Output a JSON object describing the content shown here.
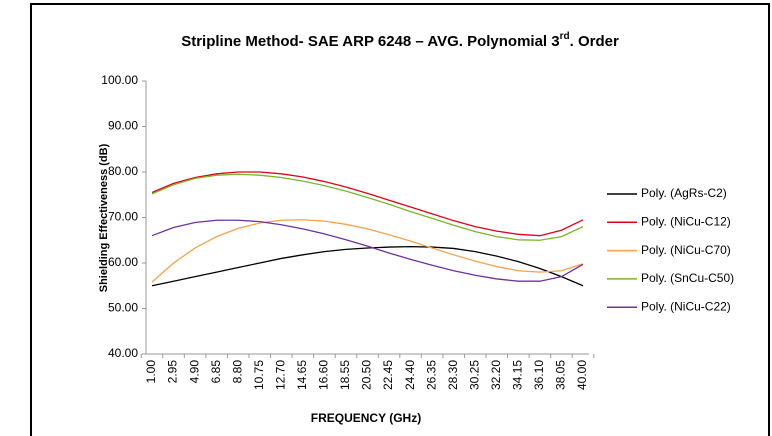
{
  "chart_data": {
    "type": "line",
    "title": "Stripline Method- SAE ARP 6248 – AVG. Polynomial 3",
    "title_sup": "rd",
    "title_end": ". Order",
    "x_label": "FREQUENCY (GHz)",
    "y_label": "Shielding Effectiveness (dB)",
    "categories": [
      "1.00",
      "2.95",
      "4.90",
      "6.85",
      "8.80",
      "10.75",
      "12.70",
      "14.65",
      "16.60",
      "18.55",
      "20.50",
      "22.45",
      "24.40",
      "26.35",
      "28.30",
      "30.25",
      "32.20",
      "34.15",
      "36.10",
      "38.05",
      "40.00"
    ],
    "ylim": [
      40,
      100
    ],
    "yticks": [
      {
        "value": 40,
        "label": "40.00"
      },
      {
        "value": 50,
        "label": "50.00"
      },
      {
        "value": 60,
        "label": "60.00"
      },
      {
        "value": 70,
        "label": "70.00"
      },
      {
        "value": 80,
        "label": "80.00"
      },
      {
        "value": 90,
        "label": "90.00"
      },
      {
        "value": 100,
        "label": "100.00"
      }
    ],
    "legend": "right",
    "series": [
      {
        "name": "Poly. (AgRs-C2)",
        "color": "#000000",
        "values": [
          55,
          56,
          57,
          58,
          59,
          60,
          61,
          61.8,
          62.5,
          63,
          63.3,
          63.5,
          63.6,
          63.5,
          63.2,
          62.5,
          61.5,
          60.3,
          58.8,
          57,
          55
        ]
      },
      {
        "name": "Poly. (NiCu-C12)",
        "color": "#e3001b",
        "values": [
          75.5,
          77.5,
          78.8,
          79.6,
          80,
          80,
          79.6,
          78.9,
          77.9,
          76.7,
          75.3,
          73.8,
          72.3,
          70.8,
          69.3,
          68,
          67,
          66.3,
          66,
          67.2,
          69.5
        ]
      },
      {
        "name": "Poly. (NiCu-C70)",
        "color": "#f7a14a",
        "values": [
          55.8,
          60,
          63.3,
          65.8,
          67.6,
          68.8,
          69.4,
          69.5,
          69.2,
          68.5,
          67.5,
          66.2,
          64.8,
          63.3,
          61.8,
          60.4,
          59.2,
          58.3,
          58,
          58.3,
          59.8
        ]
      },
      {
        "name": "Poly. (SnCu-C50)",
        "color": "#76b82a",
        "values": [
          75.2,
          77.2,
          78.6,
          79.3,
          79.5,
          79.3,
          78.8,
          78,
          77,
          75.8,
          74.4,
          72.9,
          71.3,
          69.8,
          68.3,
          66.9,
          65.8,
          65.1,
          65,
          65.8,
          68
        ]
      },
      {
        "name": "Poly. (NiCu-C22)",
        "color": "#7030a0",
        "values": [
          66,
          67.8,
          68.9,
          69.4,
          69.4,
          69.1,
          68.4,
          67.5,
          66.4,
          65.1,
          63.7,
          62.2,
          60.8,
          59.5,
          58.3,
          57.3,
          56.5,
          56,
          56,
          57,
          59.7
        ]
      }
    ]
  }
}
